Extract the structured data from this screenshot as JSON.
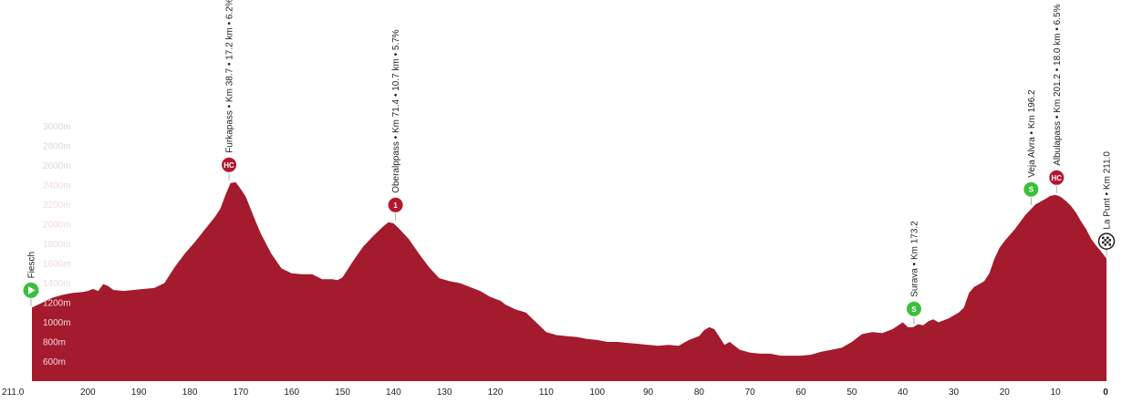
{
  "chart_data": {
    "type": "area",
    "x_axis": {
      "direction": "descending",
      "range": [
        211.0,
        0
      ],
      "ticks": [
        "211.0",
        "200",
        "190",
        "180",
        "170",
        "160",
        "150",
        "140",
        "130",
        "120",
        "110",
        "100",
        "90",
        "80",
        "70",
        "60",
        "50",
        "40",
        "30",
        "20",
        "10",
        "0"
      ]
    },
    "y_axis": {
      "unit": "m",
      "range": [
        400,
        3000
      ],
      "ticks": [
        "600m",
        "800m",
        "1000m",
        "1200m",
        "1400m",
        "1600m",
        "1800m",
        "2000m",
        "2200m",
        "2400m",
        "2600m",
        "2800m",
        "3000m"
      ]
    },
    "series": [
      {
        "fill_color": "#a31b2c",
        "points": [
          [
            211,
            1150
          ],
          [
            209,
            1200
          ],
          [
            207,
            1250
          ],
          [
            205,
            1280
          ],
          [
            203,
            1300
          ],
          [
            201,
            1310
          ],
          [
            200,
            1320
          ],
          [
            199,
            1340
          ],
          [
            198,
            1320
          ],
          [
            197,
            1390
          ],
          [
            196,
            1370
          ],
          [
            195,
            1330
          ],
          [
            193,
            1320
          ],
          [
            191,
            1330
          ],
          [
            189,
            1340
          ],
          [
            187,
            1350
          ],
          [
            185,
            1400
          ],
          [
            183,
            1560
          ],
          [
            181,
            1700
          ],
          [
            179,
            1820
          ],
          [
            177,
            1950
          ],
          [
            175,
            2080
          ],
          [
            174,
            2160
          ],
          [
            173,
            2300
          ],
          [
            172,
            2420
          ],
          [
            171,
            2430
          ],
          [
            170,
            2360
          ],
          [
            169,
            2280
          ],
          [
            168,
            2150
          ],
          [
            167,
            2020
          ],
          [
            166,
            1900
          ],
          [
            164,
            1700
          ],
          [
            162,
            1550
          ],
          [
            160,
            1500
          ],
          [
            158,
            1490
          ],
          [
            156,
            1490
          ],
          [
            154,
            1440
          ],
          [
            152,
            1440
          ],
          [
            151,
            1430
          ],
          [
            150,
            1460
          ],
          [
            148,
            1620
          ],
          [
            146,
            1770
          ],
          [
            144,
            1880
          ],
          [
            142,
            1980
          ],
          [
            141,
            2020
          ],
          [
            140,
            2010
          ],
          [
            139,
            1960
          ],
          [
            137,
            1850
          ],
          [
            135,
            1700
          ],
          [
            133,
            1560
          ],
          [
            131,
            1450
          ],
          [
            129,
            1420
          ],
          [
            127,
            1400
          ],
          [
            125,
            1360
          ],
          [
            123,
            1320
          ],
          [
            121,
            1260
          ],
          [
            119,
            1220
          ],
          [
            118,
            1180
          ],
          [
            116,
            1130
          ],
          [
            114,
            1100
          ],
          [
            112,
            1000
          ],
          [
            110,
            900
          ],
          [
            108,
            870
          ],
          [
            106,
            860
          ],
          [
            104,
            850
          ],
          [
            102,
            830
          ],
          [
            100,
            820
          ],
          [
            98,
            800
          ],
          [
            96,
            800
          ],
          [
            94,
            790
          ],
          [
            92,
            780
          ],
          [
            90,
            770
          ],
          [
            88,
            760
          ],
          [
            86,
            770
          ],
          [
            84,
            760
          ],
          [
            82,
            820
          ],
          [
            80,
            860
          ],
          [
            79,
            920
          ],
          [
            78,
            950
          ],
          [
            77,
            930
          ],
          [
            76,
            850
          ],
          [
            75,
            770
          ],
          [
            74,
            800
          ],
          [
            72,
            720
          ],
          [
            70,
            690
          ],
          [
            68,
            680
          ],
          [
            66,
            680
          ],
          [
            64,
            660
          ],
          [
            62,
            660
          ],
          [
            60,
            660
          ],
          [
            58,
            670
          ],
          [
            56,
            700
          ],
          [
            54,
            720
          ],
          [
            52,
            740
          ],
          [
            50,
            800
          ],
          [
            48,
            880
          ],
          [
            46,
            900
          ],
          [
            44,
            890
          ],
          [
            42,
            930
          ],
          [
            40,
            1000
          ],
          [
            39,
            950
          ],
          [
            38,
            950
          ],
          [
            37,
            980
          ],
          [
            36,
            970
          ],
          [
            35,
            1010
          ],
          [
            34,
            1030
          ],
          [
            33,
            1000
          ],
          [
            31,
            1040
          ],
          [
            29,
            1100
          ],
          [
            28,
            1150
          ],
          [
            27,
            1300
          ],
          [
            26,
            1360
          ],
          [
            25,
            1390
          ],
          [
            24,
            1420
          ],
          [
            23,
            1500
          ],
          [
            22,
            1650
          ],
          [
            21,
            1760
          ],
          [
            20,
            1830
          ],
          [
            18,
            1950
          ],
          [
            16,
            2090
          ],
          [
            14,
            2200
          ],
          [
            12,
            2260
          ],
          [
            11,
            2290
          ],
          [
            10,
            2300
          ],
          [
            9,
            2280
          ],
          [
            8,
            2240
          ],
          [
            7,
            2190
          ],
          [
            6,
            2120
          ],
          [
            5,
            2030
          ],
          [
            4,
            1950
          ],
          [
            3,
            1850
          ],
          [
            2,
            1780
          ],
          [
            1,
            1720
          ],
          [
            0,
            1650
          ]
        ]
      }
    ],
    "annotations": [
      {
        "km": 211.0,
        "elev": 1150,
        "label": "Fiesch",
        "icon": "start-flag-icon",
        "kind": "start",
        "color": "#3cbf3c"
      },
      {
        "km": 172.3,
        "elev": 2430,
        "label": "Furkapass • Km 38.7 • 17.2 km • 6.2%",
        "badge": "HC",
        "kind": "climb",
        "color": "#b3172e"
      },
      {
        "km": 139.6,
        "elev": 2020,
        "label": "Oberalppass • Km 71.4 • 10.7 km • 5.7%",
        "badge": "1",
        "kind": "climb",
        "color": "#b3172e"
      },
      {
        "km": 37.8,
        "elev": 960,
        "label": "Surava • Km 173.2",
        "badge": "S",
        "kind": "sprint",
        "color": "#3cbf3c"
      },
      {
        "km": 14.8,
        "elev": 2180,
        "label": "Veja Alvra • Km 196.2",
        "badge": "S",
        "kind": "sprint",
        "color": "#3cbf3c"
      },
      {
        "km": 9.8,
        "elev": 2300,
        "label": "Albulapass • Km 201.2 • 18.0 km • 6.5%",
        "badge": "HC",
        "kind": "climb",
        "color": "#b3172e"
      },
      {
        "km": 0,
        "elev": 1650,
        "label": "La Punt • Km 211.0",
        "icon": "finish-flag-icon",
        "kind": "finish",
        "color": "#222222"
      }
    ]
  }
}
